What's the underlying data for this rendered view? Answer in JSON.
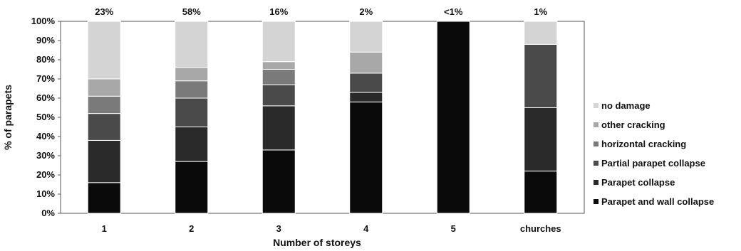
{
  "chart_data": {
    "type": "bar",
    "stacked": true,
    "normalized": true,
    "xlabel": "Number of storeys",
    "ylabel": "% of parapets",
    "ylim": [
      0,
      100
    ],
    "y_ticks": [
      "0%",
      "10%",
      "20%",
      "30%",
      "40%",
      "50%",
      "60%",
      "70%",
      "80%",
      "90%",
      "100%"
    ],
    "grid": false,
    "legend_position": "right",
    "categories": [
      "1",
      "2",
      "3",
      "4",
      "5",
      "churches"
    ],
    "top_labels": [
      "23%",
      "58%",
      "16%",
      "2%",
      "<1%",
      "1%"
    ],
    "series": [
      {
        "name": "Parapet and wall collapse",
        "color": "#0a0a0a",
        "values": [
          16,
          27,
          33,
          58,
          100,
          22
        ]
      },
      {
        "name": "Parapet collapse",
        "color": "#2a2a2a",
        "values": [
          22,
          18,
          23,
          5,
          0,
          33
        ]
      },
      {
        "name": "Partial parapet collapse",
        "color": "#4a4a4a",
        "values": [
          14,
          15,
          11,
          10,
          0,
          33
        ]
      },
      {
        "name": "horizontal cracking",
        "color": "#7a7a7a",
        "values": [
          9,
          9,
          8,
          0,
          0,
          0
        ]
      },
      {
        "name": "other cracking",
        "color": "#a8a8a8",
        "values": [
          9,
          7,
          4,
          11,
          0,
          0
        ]
      },
      {
        "name": "no damage",
        "color": "#d4d4d4",
        "values": [
          30,
          24,
          21,
          16,
          0,
          12
        ]
      }
    ]
  }
}
